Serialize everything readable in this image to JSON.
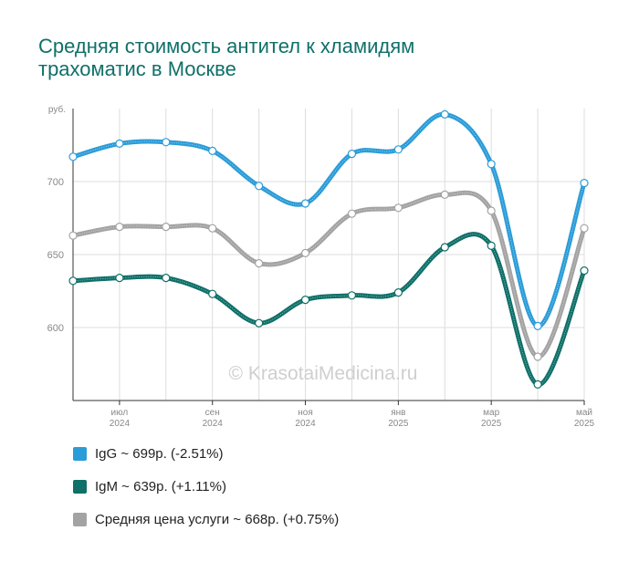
{
  "title_lines": [
    "Средняя стоимость антител к хламидям",
    "трахоматис в Москве"
  ],
  "watermark": "© KrasotaiMedicina.ru",
  "chart_data": {
    "type": "line",
    "title": "Средняя стоимость антител к хламидям трахоматис в Москве",
    "yunit": "руб.",
    "ylim": [
      550,
      750
    ],
    "yticks": [
      600,
      650,
      700
    ],
    "x": [
      0,
      1,
      2,
      3,
      4,
      5,
      6,
      7,
      8,
      9,
      10,
      11
    ],
    "xlim": [
      0,
      11
    ],
    "xticks": [
      {
        "pos": 1,
        "month": "июл",
        "year": "2024"
      },
      {
        "pos": 3,
        "month": "сен",
        "year": "2024"
      },
      {
        "pos": 5,
        "month": "ноя",
        "year": "2024"
      },
      {
        "pos": 7,
        "month": "янв",
        "year": "2025"
      },
      {
        "pos": 9,
        "month": "мар",
        "year": "2025"
      },
      {
        "pos": 11,
        "month": "май",
        "year": "2025"
      }
    ],
    "grid": true,
    "legend_position": "bottom",
    "series": [
      {
        "name": "IgG",
        "color": "#2b9cd8",
        "values": [
          717,
          726,
          727,
          721,
          697,
          685,
          719,
          722,
          746,
          712,
          601,
          699
        ]
      },
      {
        "name": "Средняя цена услуги",
        "color": "#a3a3a3",
        "values": [
          663,
          669,
          669,
          668,
          644,
          651,
          678,
          682,
          691,
          680,
          580,
          668
        ]
      },
      {
        "name": "IgM",
        "color": "#0f7068",
        "values": [
          632,
          634,
          634,
          623,
          603,
          619,
          622,
          624,
          655,
          656,
          561,
          639
        ]
      }
    ]
  },
  "legend": [
    {
      "label": "IgG ~ 699р. (-2.51%)",
      "color": "#2b9cd8"
    },
    {
      "label": "IgM ~ 639р. (+1.11%)",
      "color": "#0f7068"
    },
    {
      "label": "Средняя цена услуги ~ 668р. (+0.75%)",
      "color": "#a3a3a3"
    }
  ]
}
